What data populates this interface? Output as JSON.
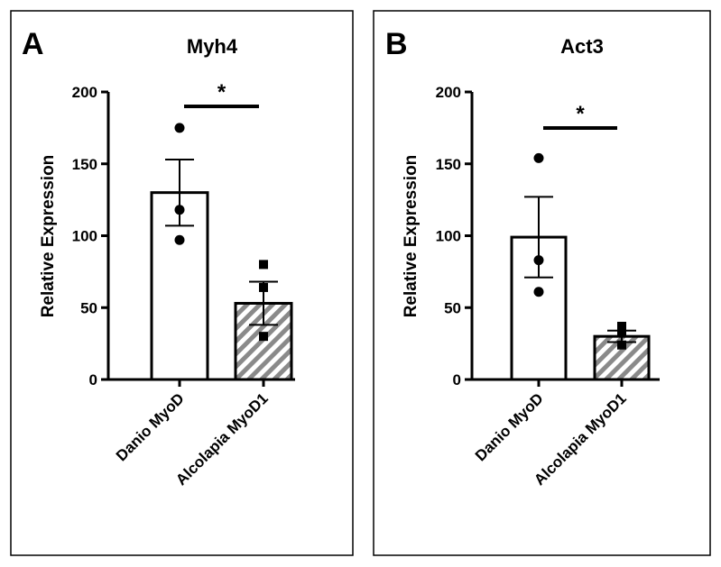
{
  "chart_data": [
    {
      "type": "bar",
      "panel_label": "A",
      "title": "Myh4",
      "ylabel": "Relative Expression",
      "ylim": [
        0,
        200
      ],
      "yticks": [
        "0",
        "50",
        "100",
        "150",
        "200"
      ],
      "categories": [
        "Danio MyoD",
        "Alcolapia MyoD1"
      ],
      "values": [
        130,
        53
      ],
      "error": [
        23,
        15
      ],
      "points": [
        [
          175,
          118,
          97
        ],
        [
          80,
          64,
          30
        ]
      ],
      "significance": "*",
      "bar_fills": [
        "solid-white",
        "hatched-gray"
      ]
    },
    {
      "type": "bar",
      "panel_label": "B",
      "title": "Act3",
      "ylabel": "Relative Expression",
      "ylim": [
        0,
        200
      ],
      "yticks": [
        "0",
        "50",
        "100",
        "150",
        "200"
      ],
      "categories": [
        "Danio MyoD",
        "Alcolapia MyoD1"
      ],
      "values": [
        99,
        30
      ],
      "error": [
        28,
        4
      ],
      "points": [
        [
          154,
          83,
          61
        ],
        [
          37,
          33,
          24
        ]
      ],
      "significance": "*",
      "bar_fills": [
        "solid-white",
        "hatched-gray"
      ]
    }
  ],
  "colors": {
    "bar_edge": "#000000",
    "hatch": "#8a8a8a",
    "background": "#ffffff"
  }
}
